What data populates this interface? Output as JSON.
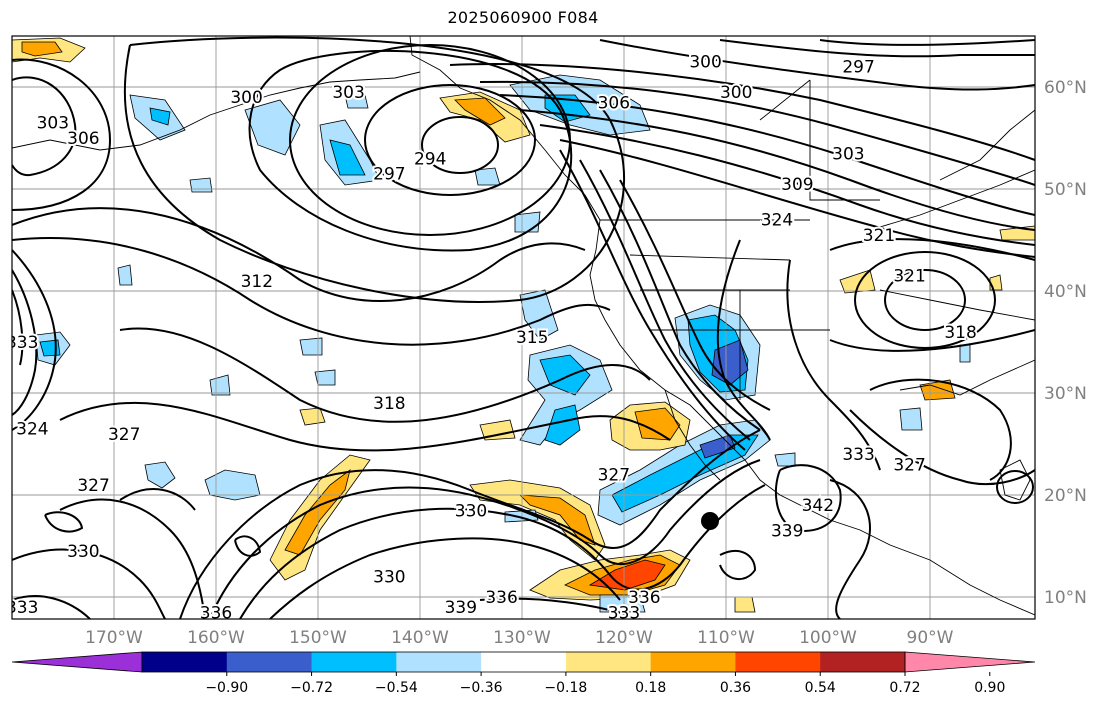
{
  "title": "2025060900 F084",
  "lat_labels": [
    "60°N",
    "50°N",
    "40°N",
    "30°N",
    "20°N",
    "10°N"
  ],
  "lon_labels": [
    "170°W",
    "160°W",
    "150°W",
    "140°W",
    "130°W",
    "120°W",
    "110°W",
    "100°W",
    "90°W"
  ],
  "colorbar": {
    "ticks": [
      "−0.90",
      "−0.72",
      "−0.54",
      "−0.36",
      "−0.18",
      "0.18",
      "0.36",
      "0.54",
      "0.72",
      "0.90"
    ],
    "colors": [
      "#9b30d9",
      "#00008b",
      "#3a5fcd",
      "#00bfff",
      "#b0e2ff",
      "#ffffff",
      "#ffe680",
      "#ffa500",
      "#ff4500",
      "#b22222",
      "#ff88aa"
    ]
  },
  "contour_labels": [
    {
      "text": "300",
      "lat": 62.5,
      "lon": -112
    },
    {
      "text": "297",
      "lat": 62.0,
      "lon": -97
    },
    {
      "text": "300",
      "lat": 59.5,
      "lon": -109
    },
    {
      "text": "306",
      "lat": 58.5,
      "lon": -121
    },
    {
      "text": "303",
      "lat": 59.5,
      "lon": -147
    },
    {
      "text": "300",
      "lat": 59.0,
      "lon": -157
    },
    {
      "text": "303",
      "lat": 56.5,
      "lon": -176
    },
    {
      "text": "306",
      "lat": 55.0,
      "lon": -173
    },
    {
      "text": "297",
      "lat": 51.5,
      "lon": -143
    },
    {
      "text": "294",
      "lat": 53.0,
      "lon": -139
    },
    {
      "text": "303",
      "lat": 53.5,
      "lon": -98
    },
    {
      "text": "309",
      "lat": 50.5,
      "lon": -103
    },
    {
      "text": "324",
      "lat": 47.0,
      "lon": -105
    },
    {
      "text": "321",
      "lat": 45.5,
      "lon": -95
    },
    {
      "text": "321",
      "lat": 41.5,
      "lon": -92
    },
    {
      "text": "312",
      "lat": 41.0,
      "lon": -156
    },
    {
      "text": "315",
      "lat": 35.5,
      "lon": -129
    },
    {
      "text": "318",
      "lat": 36.0,
      "lon": -87
    },
    {
      "text": "333",
      "lat": 35.0,
      "lon": -179
    },
    {
      "text": "318",
      "lat": 29.0,
      "lon": -143
    },
    {
      "text": "324",
      "lat": 26.5,
      "lon": -178
    },
    {
      "text": "327",
      "lat": 26.0,
      "lon": -169
    },
    {
      "text": "333",
      "lat": 24.0,
      "lon": -97
    },
    {
      "text": "327",
      "lat": 23.0,
      "lon": -92
    },
    {
      "text": "327",
      "lat": 22.0,
      "lon": -121
    },
    {
      "text": "327",
      "lat": 21.0,
      "lon": -172
    },
    {
      "text": "342",
      "lat": 19.0,
      "lon": -101
    },
    {
      "text": "330",
      "lat": 18.5,
      "lon": -135
    },
    {
      "text": "339",
      "lat": 16.5,
      "lon": -104
    },
    {
      "text": "330",
      "lat": 14.5,
      "lon": -173
    },
    {
      "text": "330",
      "lat": 12.0,
      "lon": -143
    },
    {
      "text": "336",
      "lat": 10.0,
      "lon": -132
    },
    {
      "text": "336",
      "lat": 10.0,
      "lon": -118
    },
    {
      "text": "339",
      "lat": 9.0,
      "lon": -136
    },
    {
      "text": "333",
      "lat": 9.0,
      "lon": -179
    },
    {
      "text": "336",
      "lat": 8.5,
      "lon": -160
    },
    {
      "text": "333",
      "lat": 8.5,
      "lon": -120
    }
  ]
}
